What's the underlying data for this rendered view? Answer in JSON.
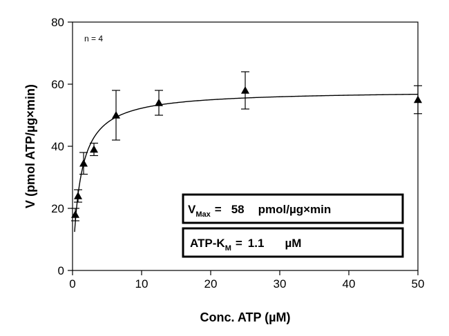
{
  "chart_data": {
    "type": "scatter",
    "title": "",
    "xlabel": "Conc. ATP (µM)",
    "ylabel": "V (pmol ATP/µg×min)",
    "xlim": [
      0,
      50
    ],
    "ylim": [
      0,
      80
    ],
    "x_ticks": [
      "0",
      "10",
      "20",
      "30",
      "40",
      "50"
    ],
    "y_ticks": [
      "0",
      "20",
      "40",
      "60",
      "80"
    ],
    "grid": false,
    "annotation": "n = 4",
    "series": [
      {
        "marker": "triangle",
        "points": [
          {
            "x": 0.4,
            "y": 18,
            "err": 2
          },
          {
            "x": 0.8,
            "y": 24,
            "err": 2
          },
          {
            "x": 1.6,
            "y": 34.5,
            "err": 3.5
          },
          {
            "x": 3.1,
            "y": 39,
            "err": 2
          },
          {
            "x": 6.3,
            "y": 50,
            "err": 8
          },
          {
            "x": 12.5,
            "y": 54,
            "err": 4
          },
          {
            "x": 25,
            "y": 58,
            "err": 6
          },
          {
            "x": 50,
            "y": 55,
            "err": 4.5
          }
        ]
      }
    ],
    "fit": {
      "model": "Michaelis-Menten",
      "vmax": 58,
      "km": 1.1
    },
    "vmax_box": {
      "symbol": "V",
      "sub": "Max",
      "eq": "=",
      "value": "58",
      "unit": "pmol/µg×min"
    },
    "km_box": {
      "symbol": "ATP-K",
      "sub": "M",
      "eq": "=",
      "value": "1.1",
      "unit": "µM"
    }
  }
}
